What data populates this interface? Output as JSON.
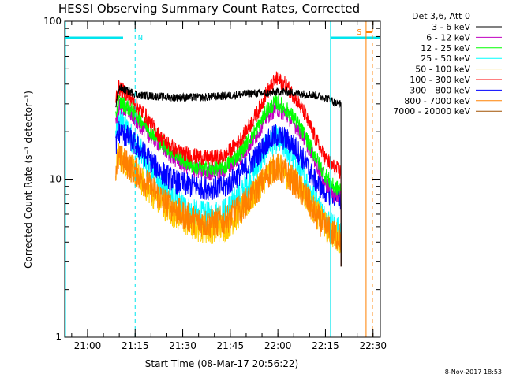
{
  "chart_data": {
    "type": "line",
    "title": "HESSI Observing Summary Count Rates, Corrected",
    "xlabel": "Start Time (08-Mar-17 20:56:22)",
    "ylabel": "Corrected Count Rate (s⁻¹ detector⁻¹)",
    "yscale": "log",
    "ylim": [
      1,
      100
    ],
    "xlim_minutes_after_start": [
      -3.6,
      95.9
    ],
    "x_ticks": [
      {
        "label": "21:00",
        "minutes": 3.6
      },
      {
        "label": "21:15",
        "minutes": 18.6
      },
      {
        "label": "21:30",
        "minutes": 33.6
      },
      {
        "label": "21:45",
        "minutes": 48.6
      },
      {
        "label": "22:00",
        "minutes": 63.6
      },
      {
        "label": "22:15",
        "minutes": 78.6
      },
      {
        "label": "22:30",
        "minutes": 93.6
      }
    ],
    "y_ticks": [
      {
        "label": "1",
        "value": 1
      },
      {
        "label": "10",
        "value": 10
      },
      {
        "label": "100",
        "value": 100
      }
    ],
    "legend": {
      "header": "Det 3,6, Att 0",
      "placement": "top-right-outside"
    },
    "series": [
      {
        "name": "3 - 6 keV",
        "color": "#000000",
        "x": [
          12.5,
          13.5,
          20,
          30,
          40,
          50,
          55,
          60,
          65,
          70,
          75,
          78,
          80,
          82,
          83.5
        ],
        "y": [
          29,
          38,
          34,
          33,
          33,
          34,
          35,
          35,
          36,
          35,
          34,
          33,
          32,
          30,
          30
        ]
      },
      {
        "name": "6 - 12 keV",
        "color": "#c000c0",
        "x": [
          12.5,
          13.5,
          17,
          22,
          27,
          32,
          37,
          42,
          47,
          52,
          57,
          60,
          63,
          66,
          69,
          72,
          75,
          78,
          81,
          83.5
        ],
        "y": [
          23,
          29,
          26,
          20,
          16,
          13,
          11.5,
          11,
          11.5,
          14,
          19,
          25,
          28,
          26,
          22,
          18,
          13.5,
          10,
          8,
          7.5
        ]
      },
      {
        "name": "12 - 25 keV",
        "color": "#00ff00",
        "x": [
          12.5,
          13.5,
          17,
          22,
          27,
          32,
          37,
          42,
          47,
          52,
          57,
          60,
          63,
          66,
          69,
          72,
          75,
          78,
          81,
          83.5
        ],
        "y": [
          26,
          31,
          28,
          22,
          17,
          14,
          12,
          11.5,
          12,
          15,
          21,
          27,
          31,
          28,
          24,
          19,
          14.5,
          11,
          9,
          8.5
        ]
      },
      {
        "name": "25 - 50 keV",
        "color": "#00ffff",
        "x": [
          12.5,
          13.5,
          17,
          22,
          27,
          32,
          37,
          42,
          47,
          52,
          57,
          60,
          63,
          66,
          69,
          72,
          75,
          78,
          81,
          83.5
        ],
        "y": [
          19,
          24,
          19,
          13,
          9,
          7,
          6,
          5.8,
          6.2,
          8,
          12,
          16,
          18,
          16,
          13,
          10,
          7.5,
          5.8,
          5,
          4.5
        ]
      },
      {
        "name": "50 - 100 keV",
        "color": "#ffcc00",
        "x": [
          12.5,
          13.5,
          17,
          22,
          27,
          32,
          37,
          42,
          47,
          52,
          57,
          60,
          63,
          66,
          69,
          72,
          75,
          78,
          81,
          83.5
        ],
        "y": [
          12,
          14,
          12,
          9,
          7,
          5.8,
          5,
          4.8,
          5,
          6.2,
          8.5,
          10.5,
          12,
          11,
          9.5,
          8,
          6.5,
          5.2,
          4.5,
          4.2
        ]
      },
      {
        "name": "100 - 300 keV",
        "color": "#ff0000",
        "x": [
          12.5,
          13.5,
          17,
          22,
          27,
          32,
          37,
          42,
          47,
          52,
          57,
          60,
          63,
          66,
          69,
          72,
          75,
          78,
          81,
          83.5
        ],
        "y": [
          33,
          38,
          33,
          25,
          18,
          15,
          14,
          13.5,
          14,
          18,
          26,
          35,
          43,
          40,
          33,
          26,
          19,
          14,
          12,
          11
        ]
      },
      {
        "name": "300 - 800 keV",
        "color": "#0000ff",
        "x": [
          12.5,
          13.5,
          17,
          22,
          27,
          32,
          37,
          42,
          47,
          52,
          57,
          60,
          63,
          66,
          69,
          72,
          75,
          78,
          81,
          83.5
        ],
        "y": [
          16,
          20,
          18,
          14,
          11,
          9.5,
          9,
          8.8,
          9,
          11,
          14,
          17,
          19,
          18,
          16,
          13,
          10,
          8.5,
          8,
          7.5
        ]
      },
      {
        "name": "800 - 7000 keV",
        "color": "#ff8000",
        "x": [
          12.5,
          13.5,
          17,
          22,
          27,
          32,
          37,
          42,
          47,
          52,
          57,
          60,
          63,
          66,
          69,
          72,
          75,
          78,
          81,
          83.5
        ],
        "y": [
          12,
          13.5,
          12,
          9.5,
          7.5,
          6.2,
          5.5,
          5.2,
          5.5,
          6.5,
          8.5,
          10.5,
          12,
          11,
          9.5,
          8,
          6.2,
          5,
          4.5,
          4.2
        ]
      },
      {
        "name": "7000 - 20000 keV",
        "color": "#a05000",
        "x": [],
        "y": []
      }
    ],
    "attenuator_markers": {
      "color": "#00e5ee",
      "segments": [
        {
          "label": "N"
        },
        {
          "label": ""
        }
      ]
    },
    "saa_markers": {
      "color": "#ff8000",
      "label": "S"
    },
    "timestamp": "8-Nov-2017 18:53"
  }
}
